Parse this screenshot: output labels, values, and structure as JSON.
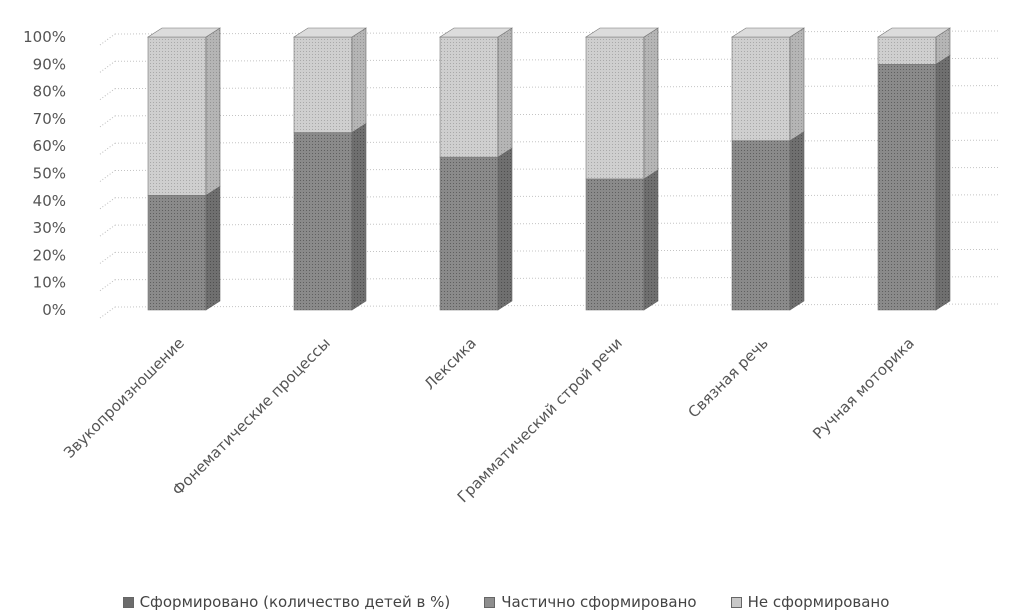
{
  "chart_data": {
    "type": "bar",
    "stacked": true,
    "percent_axis": true,
    "three_d": true,
    "categories": [
      "Звукопроизношение",
      "Фонематические процессы",
      "Лексика",
      "Грамматический строй речи",
      "Связная речь",
      "Ручная моторика"
    ],
    "series": [
      {
        "name": "Сформировано (количество детей в %)",
        "values": [
          0,
          0,
          0,
          0,
          0,
          0
        ],
        "color": "#7e7e7e"
      },
      {
        "name": "Частично сформировано",
        "values": [
          42,
          65,
          56,
          48,
          62,
          90
        ],
        "color": "#8e8e8e"
      },
      {
        "name": "Не сформировано",
        "values": [
          58,
          35,
          44,
          52,
          38,
          10
        ],
        "color": "#c8c8c8"
      }
    ],
    "y_ticks": [
      "0%",
      "10%",
      "20%",
      "30%",
      "40%",
      "50%",
      "60%",
      "70%",
      "80%",
      "90%",
      "100%"
    ],
    "ylim": [
      0,
      100
    ],
    "gridlines": true,
    "legend_position": "bottom"
  }
}
